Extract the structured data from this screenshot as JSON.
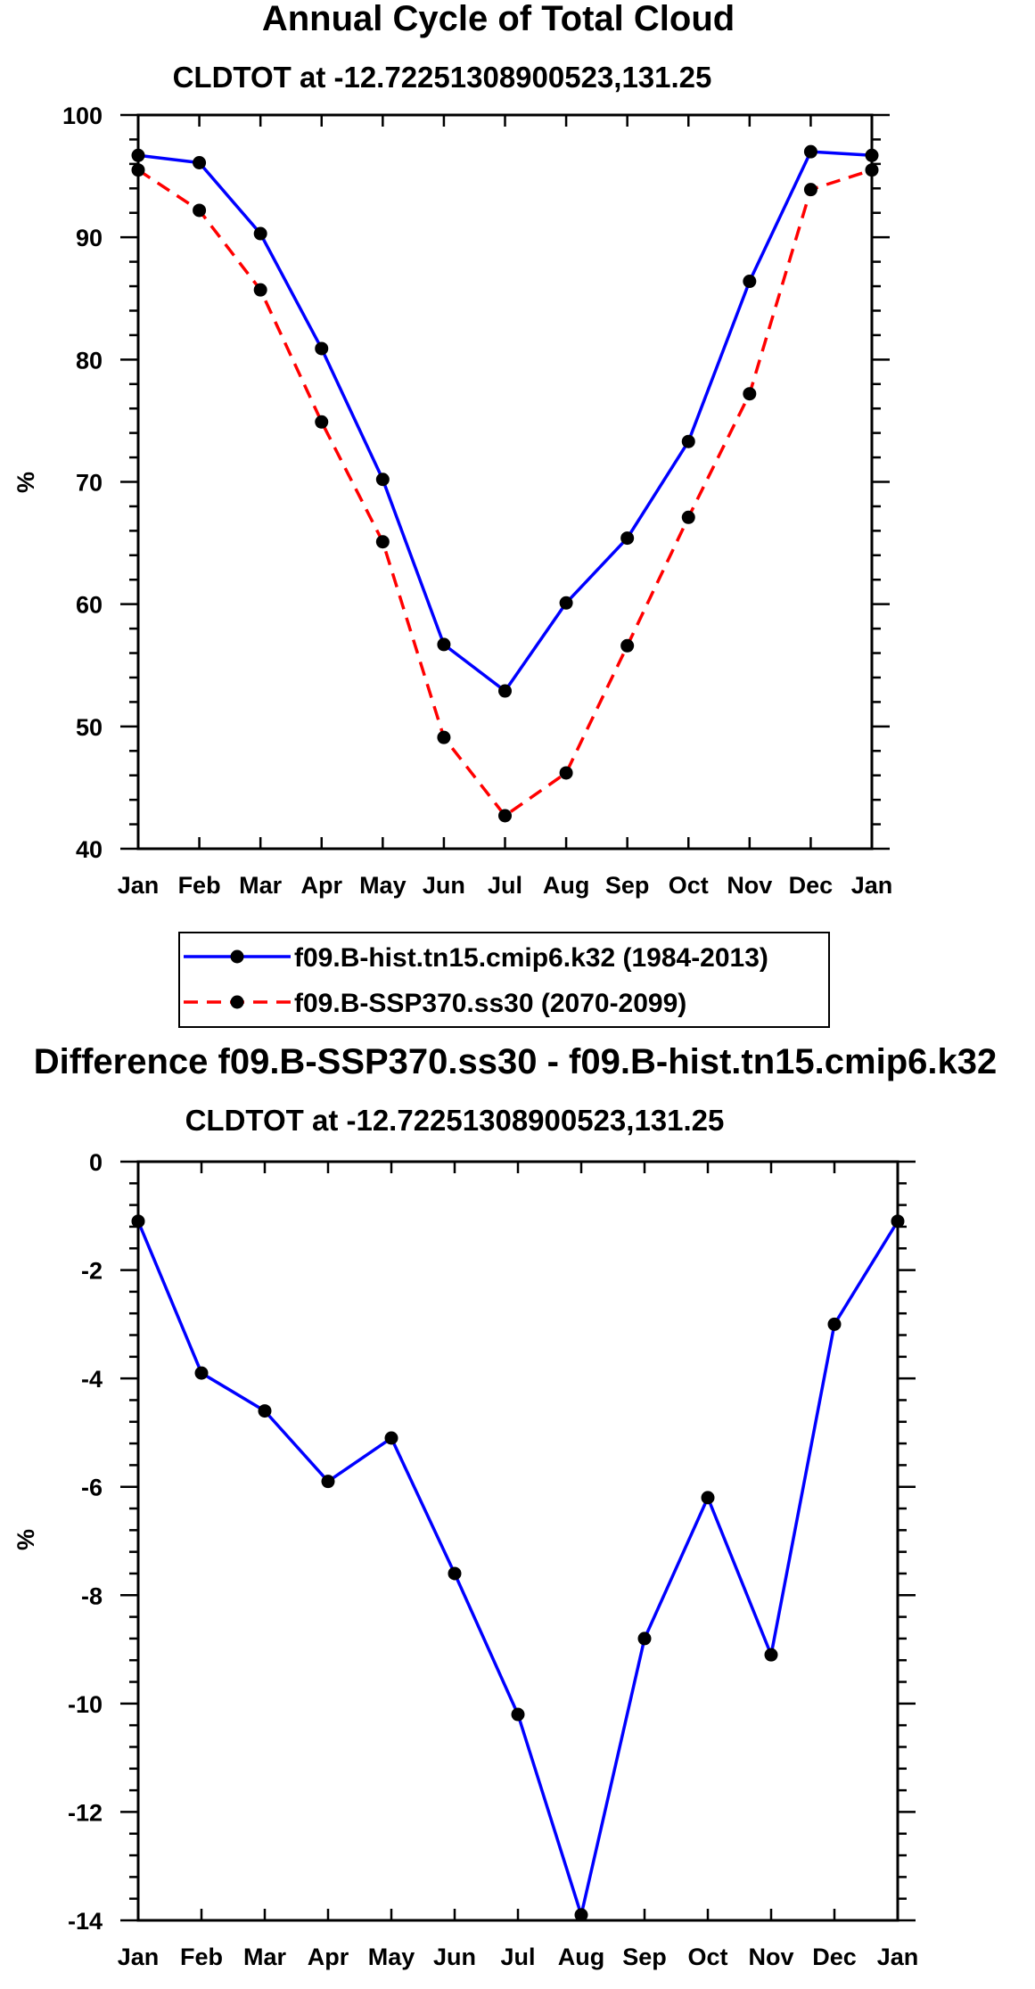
{
  "chart_data": [
    {
      "type": "line",
      "title": "Annual Cycle of Total Cloud",
      "subtitle": "CLDTOT at -12.72251308900523,131.25",
      "xlabel": "",
      "ylabel": "%",
      "categories": [
        "Jan",
        "Feb",
        "Mar",
        "Apr",
        "May",
        "Jun",
        "Jul",
        "Aug",
        "Sep",
        "Oct",
        "Nov",
        "Dec",
        "Jan"
      ],
      "ylim": [
        40,
        100
      ],
      "yticks": [
        "40",
        "50",
        "60",
        "70",
        "80",
        "90",
        "100"
      ],
      "legend_position": "below",
      "series": [
        {
          "name": "f09.B-hist.tn15.cmip6.k32 (1984-2013)",
          "color": "#0000ff",
          "style": "solid",
          "values": [
            96.7,
            96.1,
            90.3,
            80.9,
            70.2,
            56.7,
            52.9,
            60.1,
            65.4,
            73.3,
            86.4,
            97.0,
            96.7
          ]
        },
        {
          "name": "f09.B-SSP370.ss30 (2070-2099)",
          "color": "#ff0000",
          "style": "dashed",
          "values": [
            95.5,
            92.2,
            85.7,
            74.9,
            65.1,
            49.1,
            42.7,
            46.2,
            56.6,
            67.1,
            77.2,
            93.9,
            95.5
          ]
        }
      ]
    },
    {
      "type": "line",
      "title": "Difference f09.B-SSP370.ss30 - f09.B-hist.tn15.cmip6.k32",
      "subtitle": "CLDTOT at -12.72251308900523,131.25",
      "xlabel": "",
      "ylabel": "%",
      "categories": [
        "Jan",
        "Feb",
        "Mar",
        "Apr",
        "May",
        "Jun",
        "Jul",
        "Aug",
        "Sep",
        "Oct",
        "Nov",
        "Dec",
        "Jan"
      ],
      "ylim": [
        -14,
        0
      ],
      "yticks": [
        "-14",
        "-12",
        "-10",
        "-8",
        "-6",
        "-4",
        "-2",
        "0"
      ],
      "series": [
        {
          "name": "difference",
          "color": "#0000ff",
          "style": "solid",
          "values": [
            -1.1,
            -3.9,
            -4.6,
            -5.9,
            -5.1,
            -7.6,
            -10.2,
            -13.9,
            -8.8,
            -6.2,
            -9.1,
            -3.0,
            -1.1
          ]
        }
      ]
    }
  ]
}
